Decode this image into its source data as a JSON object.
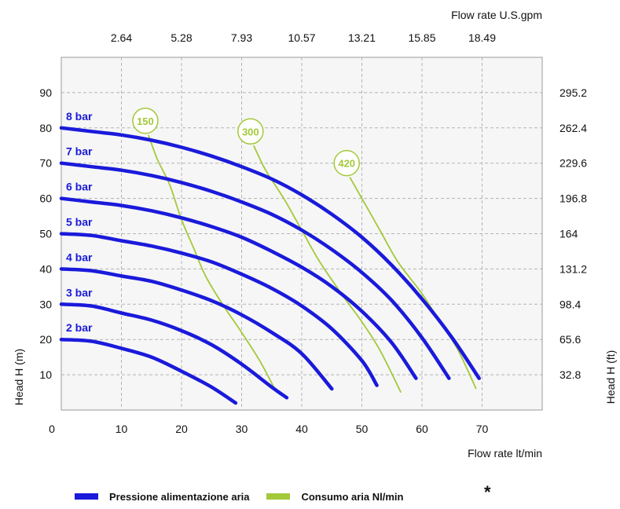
{
  "colors": {
    "pressure": "#1a1adb",
    "air": "#a3c93a",
    "grid": "#b4b4b4",
    "plot_bg": "#f6f6f6"
  },
  "legend": {
    "pressure_label": "Pressione alimentazione aria",
    "air_label": "Consumo aria Nl/min",
    "note_mark": "*"
  },
  "chart_data": {
    "type": "line",
    "xlabel_bottom": "Flow rate  lt/min",
    "xlabel_top": "Flow rate U.S.gpm",
    "ylabel_left": "Head H (m)",
    "ylabel_right": "Head H (ft)",
    "xlim": [
      0,
      80
    ],
    "ylim": [
      0,
      100
    ],
    "x_ticks": [
      0,
      10,
      20,
      30,
      40,
      50,
      60,
      70
    ],
    "y_ticks": [
      10,
      20,
      30,
      40,
      50,
      60,
      70,
      80,
      90
    ],
    "x_ticks_top": [
      "2.64",
      "5.28",
      "7.93",
      "10.57",
      "13.21",
      "15.85",
      "18.49"
    ],
    "y_ticks_right": [
      "32.8",
      "65.6",
      "98.4",
      "131.2",
      "164",
      "196.8",
      "229.6",
      "262.4",
      "295.2"
    ],
    "grid": true,
    "pressure_series": [
      {
        "name": "2 bar",
        "points": [
          [
            0,
            20
          ],
          [
            5,
            19.5
          ],
          [
            10,
            17.5
          ],
          [
            15,
            15
          ],
          [
            20,
            11
          ],
          [
            25,
            6.5
          ],
          [
            29,
            2
          ]
        ]
      },
      {
        "name": "3 bar",
        "points": [
          [
            0,
            30
          ],
          [
            5,
            29.5
          ],
          [
            10,
            27.5
          ],
          [
            15,
            25.5
          ],
          [
            20,
            22.5
          ],
          [
            25,
            18.5
          ],
          [
            30,
            13
          ],
          [
            35,
            6.5
          ],
          [
            37.5,
            3.5
          ]
        ]
      },
      {
        "name": "4 bar",
        "points": [
          [
            0,
            40
          ],
          [
            5,
            39.5
          ],
          [
            10,
            38
          ],
          [
            15,
            36.5
          ],
          [
            20,
            34
          ],
          [
            25,
            31
          ],
          [
            30,
            27
          ],
          [
            35,
            22
          ],
          [
            40,
            16
          ],
          [
            45,
            6
          ]
        ]
      },
      {
        "name": "5 bar",
        "points": [
          [
            0,
            50
          ],
          [
            5,
            49.5
          ],
          [
            10,
            48
          ],
          [
            15,
            46.5
          ],
          [
            20,
            44.5
          ],
          [
            25,
            42
          ],
          [
            30,
            38.5
          ],
          [
            35,
            34.5
          ],
          [
            40,
            29.5
          ],
          [
            45,
            23
          ],
          [
            50,
            14
          ],
          [
            52.5,
            7
          ]
        ]
      },
      {
        "name": "6 bar",
        "points": [
          [
            0,
            60
          ],
          [
            5,
            59
          ],
          [
            10,
            58
          ],
          [
            15,
            56.5
          ],
          [
            20,
            54.5
          ],
          [
            25,
            52
          ],
          [
            30,
            49
          ],
          [
            35,
            45
          ],
          [
            40,
            40.5
          ],
          [
            45,
            35
          ],
          [
            50,
            28
          ],
          [
            55,
            19
          ],
          [
            59,
            9
          ]
        ]
      },
      {
        "name": "7 bar",
        "points": [
          [
            0,
            70
          ],
          [
            5,
            69
          ],
          [
            10,
            68
          ],
          [
            15,
            66.5
          ],
          [
            20,
            64.5
          ],
          [
            25,
            62
          ],
          [
            30,
            59
          ],
          [
            35,
            55.5
          ],
          [
            40,
            51
          ],
          [
            45,
            45.5
          ],
          [
            50,
            39
          ],
          [
            55,
            31
          ],
          [
            60,
            20.5
          ],
          [
            64.5,
            9
          ]
        ]
      },
      {
        "name": "8 bar",
        "points": [
          [
            0,
            80
          ],
          [
            5,
            79
          ],
          [
            10,
            78
          ],
          [
            15,
            76.5
          ],
          [
            20,
            74.5
          ],
          [
            25,
            72
          ],
          [
            30,
            69
          ],
          [
            35,
            65.5
          ],
          [
            40,
            61
          ],
          [
            45,
            55.5
          ],
          [
            50,
            49
          ],
          [
            55,
            41
          ],
          [
            60,
            31.5
          ],
          [
            65,
            20.5
          ],
          [
            69.5,
            9
          ]
        ]
      }
    ],
    "air_series": [
      {
        "name": "150",
        "points": [
          [
            14.5,
            78
          ],
          [
            16,
            71
          ],
          [
            18,
            64
          ],
          [
            20,
            54
          ],
          [
            22,
            46
          ],
          [
            24,
            38
          ],
          [
            27,
            29.5
          ],
          [
            30,
            22
          ],
          [
            33,
            14
          ],
          [
            35.5,
            6
          ]
        ]
      },
      {
        "name": "300",
        "points": [
          [
            32,
            75
          ],
          [
            34,
            68
          ],
          [
            37,
            60
          ],
          [
            40,
            51
          ],
          [
            43,
            42
          ],
          [
            47,
            32
          ],
          [
            50,
            25
          ],
          [
            53,
            17
          ],
          [
            56.5,
            5
          ]
        ]
      },
      {
        "name": "420",
        "points": [
          [
            48,
            66
          ],
          [
            50,
            60
          ],
          [
            53,
            51
          ],
          [
            56,
            42
          ],
          [
            60,
            33
          ],
          [
            63,
            25
          ],
          [
            66,
            17
          ],
          [
            69,
            6
          ]
        ]
      }
    ]
  }
}
